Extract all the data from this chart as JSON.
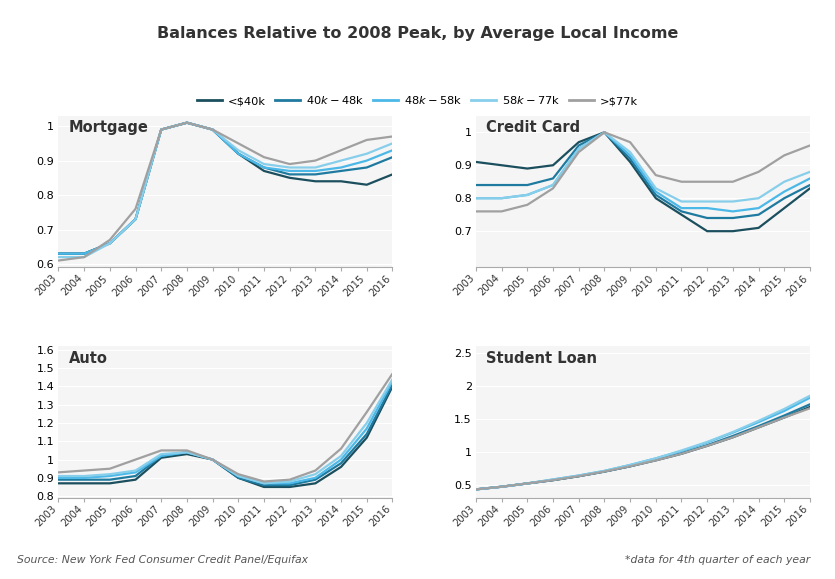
{
  "title": "Balances Relative to 2008 Peak, by Average Local Income",
  "legend_labels": [
    "<$40k",
    "$40k-$48k",
    "$48k-$58k",
    "$58k-$77k",
    ">$77k"
  ],
  "colors": [
    "#1c4f5e",
    "#1f7aa0",
    "#4bb8e8",
    "#87ceeb",
    "#a0a0a0"
  ],
  "years": [
    2003,
    2004,
    2005,
    2006,
    2007,
    2008,
    2009,
    2010,
    2011,
    2012,
    2013,
    2014,
    2015,
    2016
  ],
  "mortgage": {
    "title": "Mortgage",
    "ylim": [
      0.59,
      1.03
    ],
    "yticks": [
      0.6,
      0.7,
      0.8,
      0.9,
      1.0
    ],
    "series": [
      [
        0.63,
        0.63,
        0.66,
        0.73,
        0.99,
        1.01,
        0.99,
        0.92,
        0.87,
        0.85,
        0.84,
        0.84,
        0.83,
        0.86
      ],
      [
        0.63,
        0.63,
        0.66,
        0.73,
        0.99,
        1.01,
        0.99,
        0.92,
        0.88,
        0.86,
        0.86,
        0.87,
        0.88,
        0.91
      ],
      [
        0.63,
        0.63,
        0.66,
        0.73,
        0.99,
        1.01,
        0.99,
        0.92,
        0.88,
        0.87,
        0.87,
        0.88,
        0.9,
        0.93
      ],
      [
        0.62,
        0.62,
        0.66,
        0.73,
        0.99,
        1.01,
        0.99,
        0.93,
        0.89,
        0.88,
        0.88,
        0.9,
        0.92,
        0.95
      ],
      [
        0.61,
        0.62,
        0.67,
        0.76,
        0.99,
        1.01,
        0.99,
        0.95,
        0.91,
        0.89,
        0.9,
        0.93,
        0.96,
        0.97
      ]
    ]
  },
  "credit_card": {
    "title": "Credit Card",
    "ylim": [
      0.59,
      1.05
    ],
    "yticks": [
      0.7,
      0.8,
      0.9,
      1.0
    ],
    "series": [
      [
        0.91,
        0.9,
        0.89,
        0.9,
        0.97,
        1.0,
        0.91,
        0.8,
        0.75,
        0.7,
        0.7,
        0.71,
        0.77,
        0.83
      ],
      [
        0.84,
        0.84,
        0.84,
        0.86,
        0.96,
        1.0,
        0.92,
        0.81,
        0.76,
        0.74,
        0.74,
        0.75,
        0.8,
        0.84
      ],
      [
        0.8,
        0.8,
        0.81,
        0.84,
        0.95,
        1.0,
        0.93,
        0.82,
        0.77,
        0.77,
        0.76,
        0.77,
        0.82,
        0.86
      ],
      [
        0.8,
        0.8,
        0.81,
        0.84,
        0.95,
        1.0,
        0.94,
        0.83,
        0.79,
        0.79,
        0.79,
        0.8,
        0.85,
        0.88
      ],
      [
        0.76,
        0.76,
        0.78,
        0.83,
        0.94,
        1.0,
        0.97,
        0.87,
        0.85,
        0.85,
        0.85,
        0.88,
        0.93,
        0.96
      ]
    ]
  },
  "auto": {
    "title": "Auto",
    "ylim": [
      0.79,
      1.62
    ],
    "yticks": [
      0.8,
      0.9,
      1.0,
      1.1,
      1.2,
      1.3,
      1.4,
      1.5,
      1.6
    ],
    "series": [
      [
        0.87,
        0.87,
        0.87,
        0.89,
        1.01,
        1.03,
        1.0,
        0.9,
        0.85,
        0.85,
        0.87,
        0.96,
        1.12,
        1.4
      ],
      [
        0.89,
        0.89,
        0.89,
        0.91,
        1.02,
        1.04,
        1.0,
        0.9,
        0.86,
        0.86,
        0.89,
        0.98,
        1.14,
        1.41
      ],
      [
        0.9,
        0.9,
        0.91,
        0.93,
        1.02,
        1.04,
        1.0,
        0.91,
        0.87,
        0.87,
        0.9,
        1.0,
        1.17,
        1.43
      ],
      [
        0.91,
        0.91,
        0.92,
        0.94,
        1.03,
        1.04,
        1.0,
        0.91,
        0.87,
        0.88,
        0.92,
        1.02,
        1.2,
        1.44
      ],
      [
        0.93,
        0.94,
        0.95,
        1.0,
        1.05,
        1.05,
        1.0,
        0.92,
        0.88,
        0.89,
        0.94,
        1.06,
        1.26,
        1.47
      ]
    ]
  },
  "student_loan": {
    "title": "Student Loan",
    "ylim": [
      0.3,
      2.6
    ],
    "yticks": [
      0.5,
      1.0,
      1.5,
      2.0,
      2.5
    ],
    "series": [
      [
        0.43,
        0.47,
        0.52,
        0.57,
        0.63,
        0.7,
        0.78,
        0.87,
        0.97,
        1.09,
        1.22,
        1.37,
        1.52,
        1.68
      ],
      [
        0.43,
        0.47,
        0.52,
        0.57,
        0.63,
        0.7,
        0.78,
        0.88,
        0.98,
        1.1,
        1.24,
        1.39,
        1.55,
        1.72
      ],
      [
        0.43,
        0.47,
        0.52,
        0.58,
        0.64,
        0.71,
        0.8,
        0.9,
        1.01,
        1.14,
        1.29,
        1.45,
        1.62,
        1.82
      ],
      [
        0.43,
        0.47,
        0.52,
        0.58,
        0.64,
        0.71,
        0.8,
        0.9,
        1.02,
        1.15,
        1.3,
        1.47,
        1.65,
        1.85
      ],
      [
        0.43,
        0.47,
        0.52,
        0.57,
        0.63,
        0.7,
        0.78,
        0.87,
        0.97,
        1.09,
        1.22,
        1.37,
        1.52,
        1.66
      ]
    ]
  },
  "source_text": "Source: New York Fed Consumer Credit Panel/Equifax",
  "note_text": "*data for 4th quarter of each year",
  "bg_color": "#f5f5f5"
}
